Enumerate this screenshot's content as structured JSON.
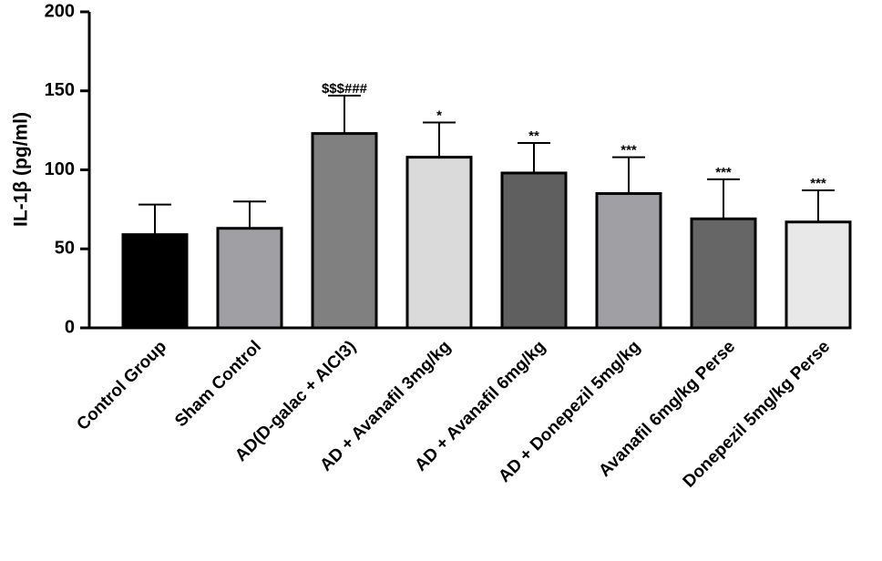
{
  "chart_data": {
    "type": "bar",
    "y_label": "IL-1β (pg/ml)",
    "categories": [
      "Control Group",
      "Sham Control",
      "AD(D-galac + AlCl3)",
      "AD + Avanafil 3mg/kg",
      "AD + Avanafil 6mg/kg",
      "AD + Donepezil 5mg/kg",
      "Avanafil 6mg/kg Perse",
      "Donepezil 5mg/kg Perse"
    ],
    "values": [
      59,
      63,
      123,
      108,
      98,
      85,
      69,
      67
    ],
    "errors": [
      19,
      17,
      24,
      22,
      19,
      23,
      25,
      20
    ],
    "annotations": [
      null,
      null,
      "$$$###",
      "*",
      "**",
      "***",
      "***",
      "***"
    ],
    "colors": [
      "#000000",
      "#a0a0a4",
      "#808080",
      "#dadada",
      "#5f5f5f",
      "#a0a0a4",
      "#666666",
      "#e8e8e8"
    ],
    "ylim": [
      0,
      200
    ],
    "yticks": [
      0,
      50,
      100,
      150,
      200
    ]
  }
}
